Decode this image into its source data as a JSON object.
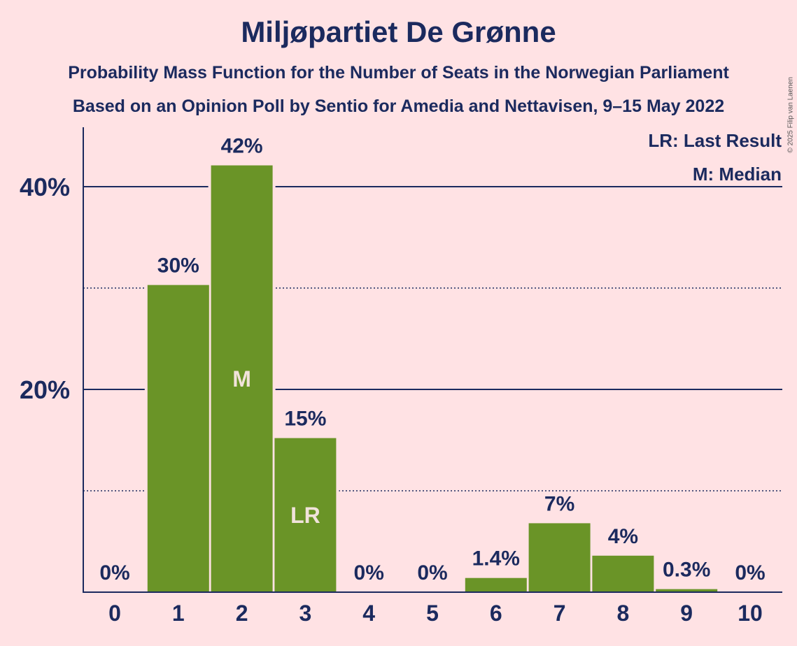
{
  "chart_data": {
    "type": "bar",
    "title": "Miljøpartiet De Grønne",
    "subtitle": [
      "Probability Mass Function for the Number of Seats in the Norwegian Parliament",
      "Based on an Opinion Poll by Sentio for Amedia and Nettavisen, 9–15 May 2022"
    ],
    "categories": [
      "0",
      "1",
      "2",
      "3",
      "4",
      "5",
      "6",
      "7",
      "8",
      "9",
      "10"
    ],
    "values": [
      0,
      30.3,
      42.1,
      15.2,
      0,
      0,
      1.4,
      6.8,
      3.6,
      0.3,
      0
    ],
    "data_labels": [
      "0%",
      "30%",
      "42%",
      "15%",
      "0%",
      "0%",
      "1.4%",
      "7%",
      "4%",
      "0.3%",
      "0%"
    ],
    "bar_markers": {
      "2": "M",
      "3": "LR"
    },
    "y_ticks": [
      {
        "value": 20,
        "label": "20%"
      },
      {
        "value": 40,
        "label": "40%"
      }
    ],
    "minor_gridlines": [
      10,
      30
    ],
    "ylim": [
      0,
      46
    ],
    "legend": [
      "LR: Last Result",
      "M: Median"
    ],
    "legend_position": "top-right",
    "colors": {
      "background": "#FFE2E4",
      "bar": "#6A9427",
      "text": "#1B2A5E",
      "marker_text": "#F1E3DB"
    }
  },
  "copyright": "© 2025 Filip van Laenen"
}
